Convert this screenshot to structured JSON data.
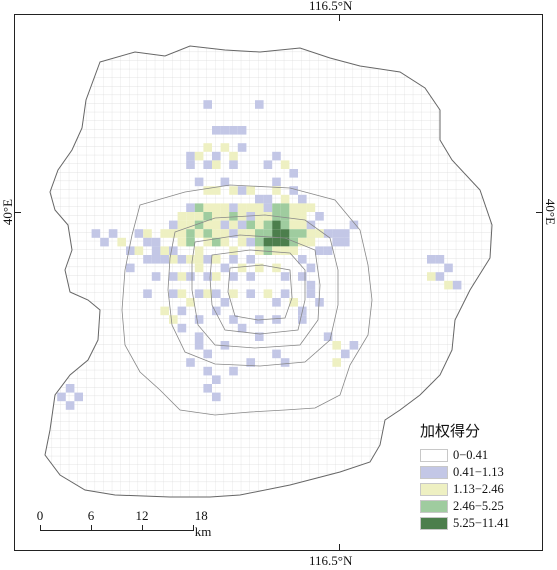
{
  "axis_labels": {
    "top": "116.5°N",
    "bottom": "116.5°N",
    "left": "40°E",
    "right": "40°E"
  },
  "legend": {
    "title": "加权得分",
    "items": [
      {
        "label": "0−0.41",
        "color": "#ffffff"
      },
      {
        "label": "0.41−1.13",
        "color": "#c3c7e6"
      },
      {
        "label": "1.13−2.46",
        "color": "#eef0c2"
      },
      {
        "label": "2.46−5.25",
        "color": "#9fcc9f"
      },
      {
        "label": "5.25−11.41",
        "color": "#4c7e4c"
      }
    ]
  },
  "scale_bar": {
    "ticks": [
      "0",
      "6",
      "12",
      "18 km"
    ]
  }
}
